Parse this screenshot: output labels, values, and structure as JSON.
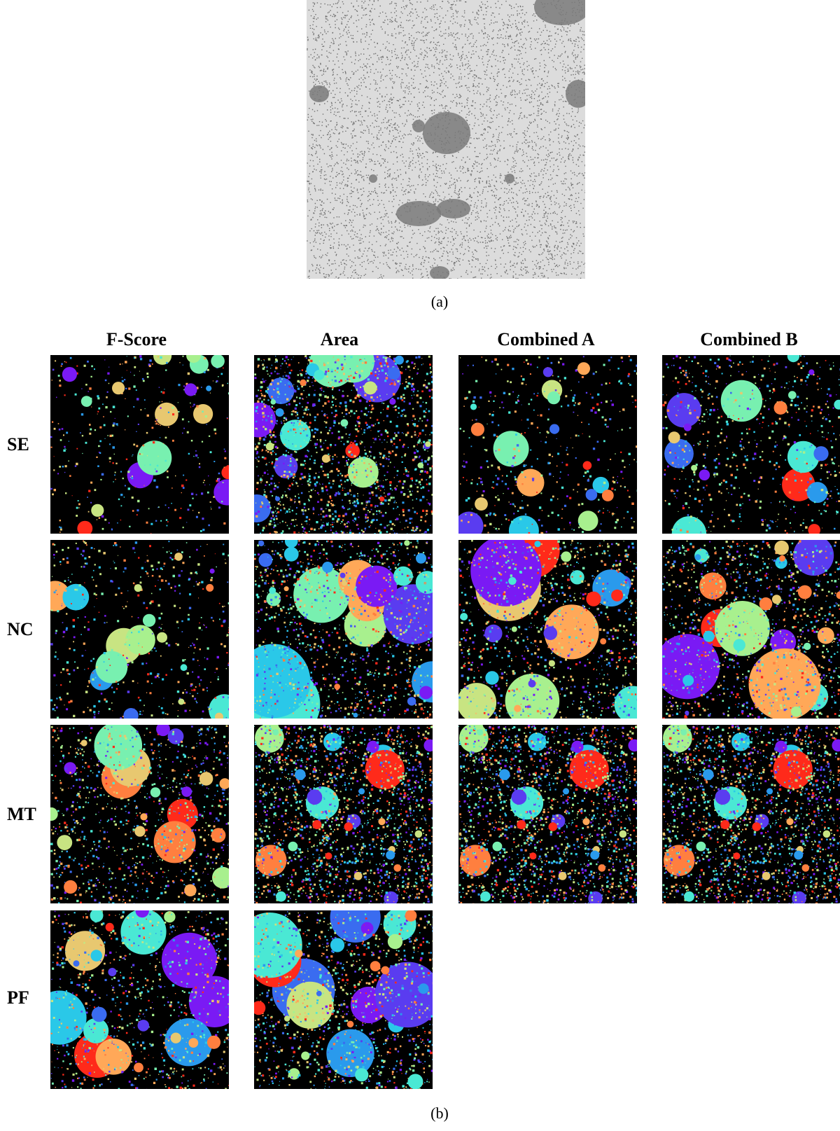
{
  "figure": {
    "top_caption": "(a)",
    "bottom_caption": "(b)",
    "columns": [
      "F-Score",
      "Area",
      "Combined A",
      "Combined B"
    ],
    "rows": [
      "SE",
      "NC",
      "MT",
      "PF"
    ],
    "panel_colors": [
      "#ff2a1a",
      "#ff7f3f",
      "#ffa858",
      "#e8c870",
      "#c8e482",
      "#a8f08e",
      "#78f0b0",
      "#4ae8d4",
      "#2ac8e8",
      "#2a9aec",
      "#3a6cf0",
      "#5a3cf0",
      "#7a1af4"
    ]
  }
}
